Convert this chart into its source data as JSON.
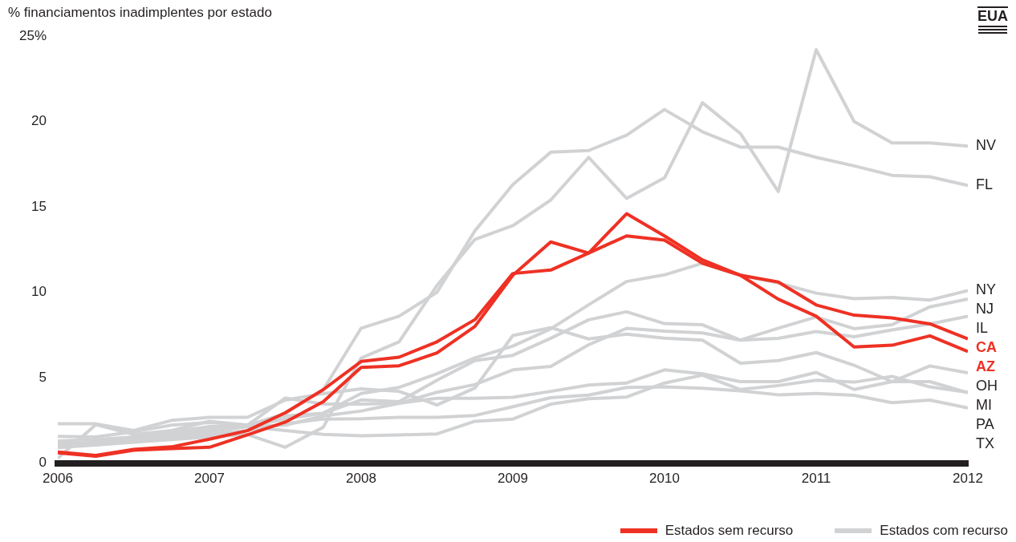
{
  "chart_data": {
    "type": "line",
    "ylabel": "% financiamentos inadimplentes por estado",
    "annotations": [
      "EUA",
      "Estados sem recurso",
      "Estados com recurso"
    ],
    "x": [
      2006,
      2006.25,
      2006.5,
      2006.75,
      2007,
      2007.25,
      2007.5,
      2007.75,
      2008,
      2008.25,
      2008.5,
      2008.75,
      2009,
      2009.25,
      2009.5,
      2009.75,
      2010,
      2010.25,
      2010.5,
      2010.75,
      2011,
      2011.25,
      2011.5,
      2011.75,
      2012
    ],
    "xlim": [
      2006,
      2012
    ],
    "xticks": [
      2006,
      2007,
      2008,
      2009,
      2010,
      2011,
      2012
    ],
    "ylim": [
      0,
      25
    ],
    "yticks": [
      0,
      5,
      10,
      15,
      20,
      {
        "value": 25,
        "label": "25%"
      }
    ],
    "series": [
      {
        "name": "CA",
        "color": "#ee3124",
        "values": [
          0.65,
          0.45,
          0.8,
          0.95,
          1.4,
          1.9,
          2.95,
          4.3,
          5.95,
          6.2,
          7.1,
          8.4,
          11.1,
          11.3,
          12.3,
          13.3,
          13.05,
          11.7,
          11.0,
          10.6,
          9.26,
          8.66,
          8.5,
          8.15,
          7.27
        ]
      },
      {
        "name": "AZ",
        "color": "#ee3124",
        "values": [
          0.6,
          0.4,
          0.75,
          0.85,
          0.93,
          1.65,
          2.4,
          3.6,
          5.6,
          5.7,
          6.45,
          8.0,
          11.0,
          12.95,
          12.3,
          14.6,
          13.3,
          11.9,
          11.0,
          9.6,
          8.6,
          6.8,
          6.9,
          7.45,
          6.53
        ]
      },
      {
        "name": "NV",
        "color": "#d1d2d4",
        "values": [
          0.91,
          1.06,
          1.22,
          1.38,
          1.53,
          1.68,
          0.93,
          2.1,
          6.15,
          7.1,
          10.4,
          13.1,
          13.9,
          15.4,
          17.9,
          15.5,
          16.7,
          21.1,
          19.3,
          15.9,
          24.2,
          20.0,
          18.75,
          18.75,
          18.56
        ]
      },
      {
        "name": "FL",
        "color": "#d1d2d4",
        "values": [
          1.0,
          1.14,
          1.38,
          1.68,
          1.91,
          2.22,
          2.9,
          4.3,
          7.9,
          8.6,
          10.0,
          13.6,
          16.3,
          18.2,
          18.3,
          19.2,
          20.7,
          19.4,
          18.5,
          18.5,
          17.9,
          17.4,
          16.85,
          16.76,
          16.25
        ]
      },
      {
        "name": "NY",
        "color": "#d1d2d4",
        "values": [
          1.3,
          1.38,
          1.53,
          1.84,
          2.14,
          2.14,
          2.58,
          2.92,
          4.08,
          4.43,
          5.23,
          6.16,
          6.85,
          7.86,
          9.27,
          10.63,
          11.02,
          11.7,
          11.0,
          10.55,
          9.95,
          9.63,
          9.7,
          9.55,
          10.1
        ]
      },
      {
        "name": "NJ",
        "color": "#d1d2d4",
        "values": [
          1.56,
          1.53,
          1.84,
          2.22,
          2.38,
          2.22,
          2.76,
          2.92,
          3.7,
          3.6,
          4.85,
          6.0,
          6.31,
          7.31,
          8.39,
          8.86,
          8.17,
          8.1,
          7.2,
          7.9,
          8.55,
          7.87,
          8.1,
          9.15,
          9.6
        ]
      },
      {
        "name": "IL",
        "color": "#d1d2d4",
        "values": [
          1.22,
          1.06,
          1.53,
          1.84,
          1.99,
          2.14,
          2.22,
          2.76,
          3.05,
          3.5,
          4.15,
          4.6,
          5.46,
          5.66,
          6.93,
          7.89,
          7.73,
          7.62,
          7.2,
          7.3,
          7.7,
          7.4,
          7.8,
          8.15,
          8.6
        ]
      },
      {
        "name": "OH",
        "color": "#d1d2d4",
        "values": [
          0.29,
          2.25,
          1.68,
          1.91,
          2.45,
          2.22,
          3.81,
          3.46,
          3.45,
          3.5,
          3.8,
          3.8,
          3.85,
          4.2,
          4.57,
          4.69,
          5.46,
          5.23,
          4.77,
          4.77,
          5.31,
          4.31,
          4.77,
          5.69,
          5.28
        ]
      },
      {
        "name": "PA",
        "color": "#d1d2d4",
        "values": [
          2.3,
          2.3,
          1.91,
          2.5,
          2.68,
          2.68,
          3.69,
          4.07,
          4.35,
          4.2,
          3.4,
          4.4,
          7.47,
          7.93,
          7.27,
          7.55,
          7.32,
          7.2,
          5.85,
          6.0,
          6.47,
          5.73,
          4.77,
          4.77,
          4.12
        ]
      },
      {
        "name": "MI",
        "color": "#d1d2d4",
        "values": [
          1.06,
          1.22,
          1.38,
          1.68,
          1.84,
          2.14,
          1.91,
          1.68,
          1.6,
          1.65,
          1.71,
          2.45,
          2.58,
          3.45,
          3.77,
          3.87,
          4.69,
          5.15,
          4.31,
          4.54,
          4.85,
          4.74,
          5.08,
          4.46,
          4.15
        ]
      },
      {
        "name": "TX",
        "color": "#d1d2d4",
        "values": [
          0.91,
          1.14,
          1.3,
          1.53,
          1.68,
          1.91,
          2.3,
          2.58,
          2.6,
          2.68,
          2.68,
          2.79,
          3.3,
          3.83,
          3.98,
          4.43,
          4.46,
          4.38,
          4.23,
          4.0,
          4.08,
          3.97,
          3.54,
          3.69,
          3.23
        ]
      }
    ]
  }
}
